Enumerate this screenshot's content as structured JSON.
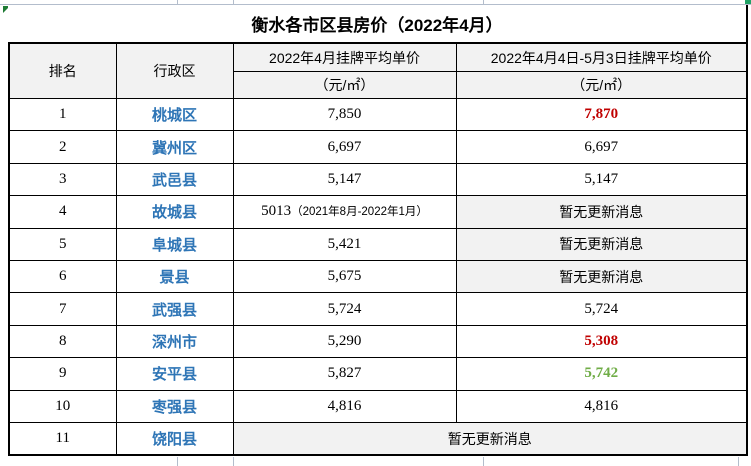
{
  "title": "衡水各市区县房价（2022年4月）",
  "table": {
    "headers": {
      "rank": "排名",
      "district": "行政区",
      "april_line1": "2022年4月挂牌平均单价",
      "april_line2": "（元/㎡）",
      "rolling_line1": "2022年4月4日-5月3日挂牌平均单价",
      "rolling_line2": "（元/㎡）"
    },
    "rows": [
      {
        "rank": "1",
        "district": "桃城区",
        "april": "7,850",
        "rolling": "7,870",
        "rolling_style": "red"
      },
      {
        "rank": "2",
        "district": "冀州区",
        "april": "6,697",
        "rolling": "6,697"
      },
      {
        "rank": "3",
        "district": "武邑县",
        "april": "5,147",
        "rolling": "5,147"
      },
      {
        "rank": "4",
        "district": "故城县",
        "april": "5013",
        "april_note": "（2021年8月-2022年1月）",
        "rolling": "暂无更新消息",
        "rolling_style": "gray"
      },
      {
        "rank": "5",
        "district": "阜城县",
        "april": "5,421",
        "rolling": "暂无更新消息",
        "rolling_style": "gray"
      },
      {
        "rank": "6",
        "district": "景县",
        "april": "5,675",
        "rolling": "暂无更新消息",
        "rolling_style": "gray"
      },
      {
        "rank": "7",
        "district": "武强县",
        "april": "5,724",
        "rolling": "5,724"
      },
      {
        "rank": "8",
        "district": "深州市",
        "april": "5,290",
        "rolling": "5,308",
        "rolling_style": "red"
      },
      {
        "rank": "9",
        "district": "安平县",
        "april": "5,827",
        "rolling": "5,742",
        "rolling_style": "green"
      },
      {
        "rank": "10",
        "district": "枣强县",
        "april": "4,816",
        "rolling": "4,816"
      },
      {
        "rank": "11",
        "district": "饶阳县",
        "merged": "暂无更新消息"
      }
    ]
  },
  "colors": {
    "district_blue": "#2e75b6",
    "up_red": "#c00000",
    "down_green": "#70ad47",
    "no_update_gray": "#f2f2f2",
    "table_border": "#000000",
    "grid_line": "#b3bdcc",
    "error_marker_green": "#1e7b34",
    "corner_mark_green": "#21a366"
  }
}
